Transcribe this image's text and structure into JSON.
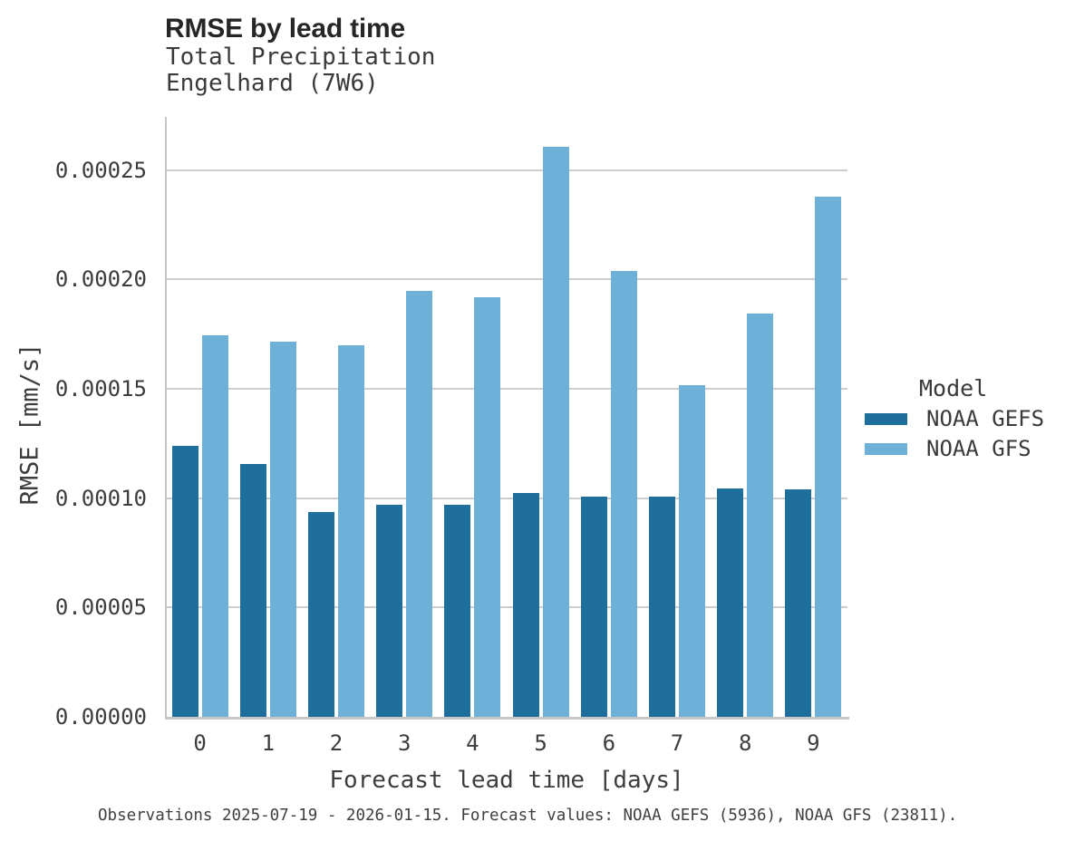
{
  "title": "RMSE by lead time",
  "subtitle1": "Total Precipitation",
  "subtitle2": "Engelhard (7W6)",
  "footer": "Observations 2025-07-19 - 2026-01-15. Forecast values: NOAA GEFS (5936), NOAA GFS (23811).",
  "colors": {
    "gefs_dark_blue": "#1f6f9c",
    "gfs_light_blue": "#6db1d8",
    "gridline_gray": "#cdcdcd",
    "axis_gray": "#c6c6c6",
    "title_text": "#262626",
    "body_text": "#3d3d3d"
  },
  "legend": {
    "title": "Model",
    "entries": [
      {
        "label": "NOAA GEFS",
        "color": "#1f6f9c"
      },
      {
        "label": "NOAA GFS",
        "color": "#6db1d8"
      }
    ]
  },
  "chart_data": {
    "type": "bar",
    "title": "RMSE by lead time",
    "subtitle": [
      "Total Precipitation",
      "Engelhard (7W6)"
    ],
    "xlabel": "Forecast lead time [days]",
    "ylabel": "RMSE [mm/s]",
    "categories": [
      "0",
      "1",
      "2",
      "3",
      "4",
      "5",
      "6",
      "7",
      "8",
      "9"
    ],
    "series": [
      {
        "name": "NOAA GEFS",
        "color": "#1f6f9c",
        "values": [
          0.000124,
          0.0001155,
          9.35e-05,
          9.68e-05,
          9.68e-05,
          0.0001025,
          0.0001005,
          0.0001005,
          0.0001045,
          0.0001038
        ]
      },
      {
        "name": "NOAA GFS",
        "color": "#6db1d8",
        "values": [
          0.0001743,
          0.0001717,
          0.0001697,
          0.0001949,
          0.0001919,
          0.0002605,
          0.0002038,
          0.0001517,
          0.0001845,
          0.0002377
        ]
      }
    ],
    "ylim": [
      0,
      0.000274
    ],
    "yticks": [
      0,
      5e-05,
      0.0001,
      0.00015,
      0.0002,
      0.00025
    ],
    "ytick_labels": [
      "0.00000",
      "0.00005",
      "0.00010",
      "0.00015",
      "0.00020",
      "0.00025"
    ],
    "legend_title": "Model",
    "legend_position": "right",
    "grid": true,
    "caption": "Observations 2025-07-19 - 2026-01-15. Forecast values: NOAA GEFS (5936), NOAA GFS (23811)."
  }
}
